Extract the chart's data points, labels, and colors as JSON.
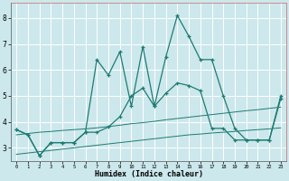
{
  "xlabel": "Humidex (Indice chaleur)",
  "x_values": [
    0,
    1,
    2,
    3,
    4,
    5,
    6,
    7,
    8,
    9,
    10,
    11,
    12,
    13,
    14,
    15,
    16,
    17,
    18,
    19,
    20,
    21,
    22,
    23
  ],
  "line_main": [
    3.7,
    3.5,
    2.7,
    3.2,
    3.2,
    3.2,
    3.6,
    6.4,
    5.8,
    6.7,
    4.6,
    6.9,
    4.6,
    6.5,
    8.1,
    7.3,
    6.4,
    6.4,
    5.0,
    3.75,
    3.3,
    3.3,
    3.3,
    5.0
  ],
  "line_mid": [
    3.7,
    3.5,
    2.7,
    3.2,
    3.2,
    3.2,
    3.6,
    3.6,
    3.8,
    4.2,
    5.0,
    5.3,
    4.6,
    5.1,
    5.5,
    5.4,
    5.2,
    3.75,
    3.75,
    3.3,
    3.3,
    3.3,
    3.3,
    4.9
  ],
  "line_upper": [
    3.5,
    3.55,
    3.6,
    3.63,
    3.67,
    3.7,
    3.73,
    3.77,
    3.82,
    3.87,
    3.93,
    3.97,
    4.02,
    4.08,
    4.13,
    4.18,
    4.23,
    4.28,
    4.33,
    4.38,
    4.43,
    4.47,
    4.52,
    4.57
  ],
  "line_lower": [
    2.75,
    2.8,
    2.85,
    2.9,
    2.95,
    3.0,
    3.05,
    3.1,
    3.15,
    3.2,
    3.25,
    3.3,
    3.35,
    3.4,
    3.45,
    3.5,
    3.53,
    3.57,
    3.6,
    3.63,
    3.67,
    3.7,
    3.73,
    3.77
  ],
  "bg_color": "#cce8ec",
  "line_color": "#1e7b72",
  "grid_color": "#ffffff",
  "ylim": [
    2.5,
    8.6
  ],
  "yticks": [
    3,
    4,
    5,
    6,
    7,
    8
  ],
  "xlim": [
    -0.5,
    23.5
  ]
}
